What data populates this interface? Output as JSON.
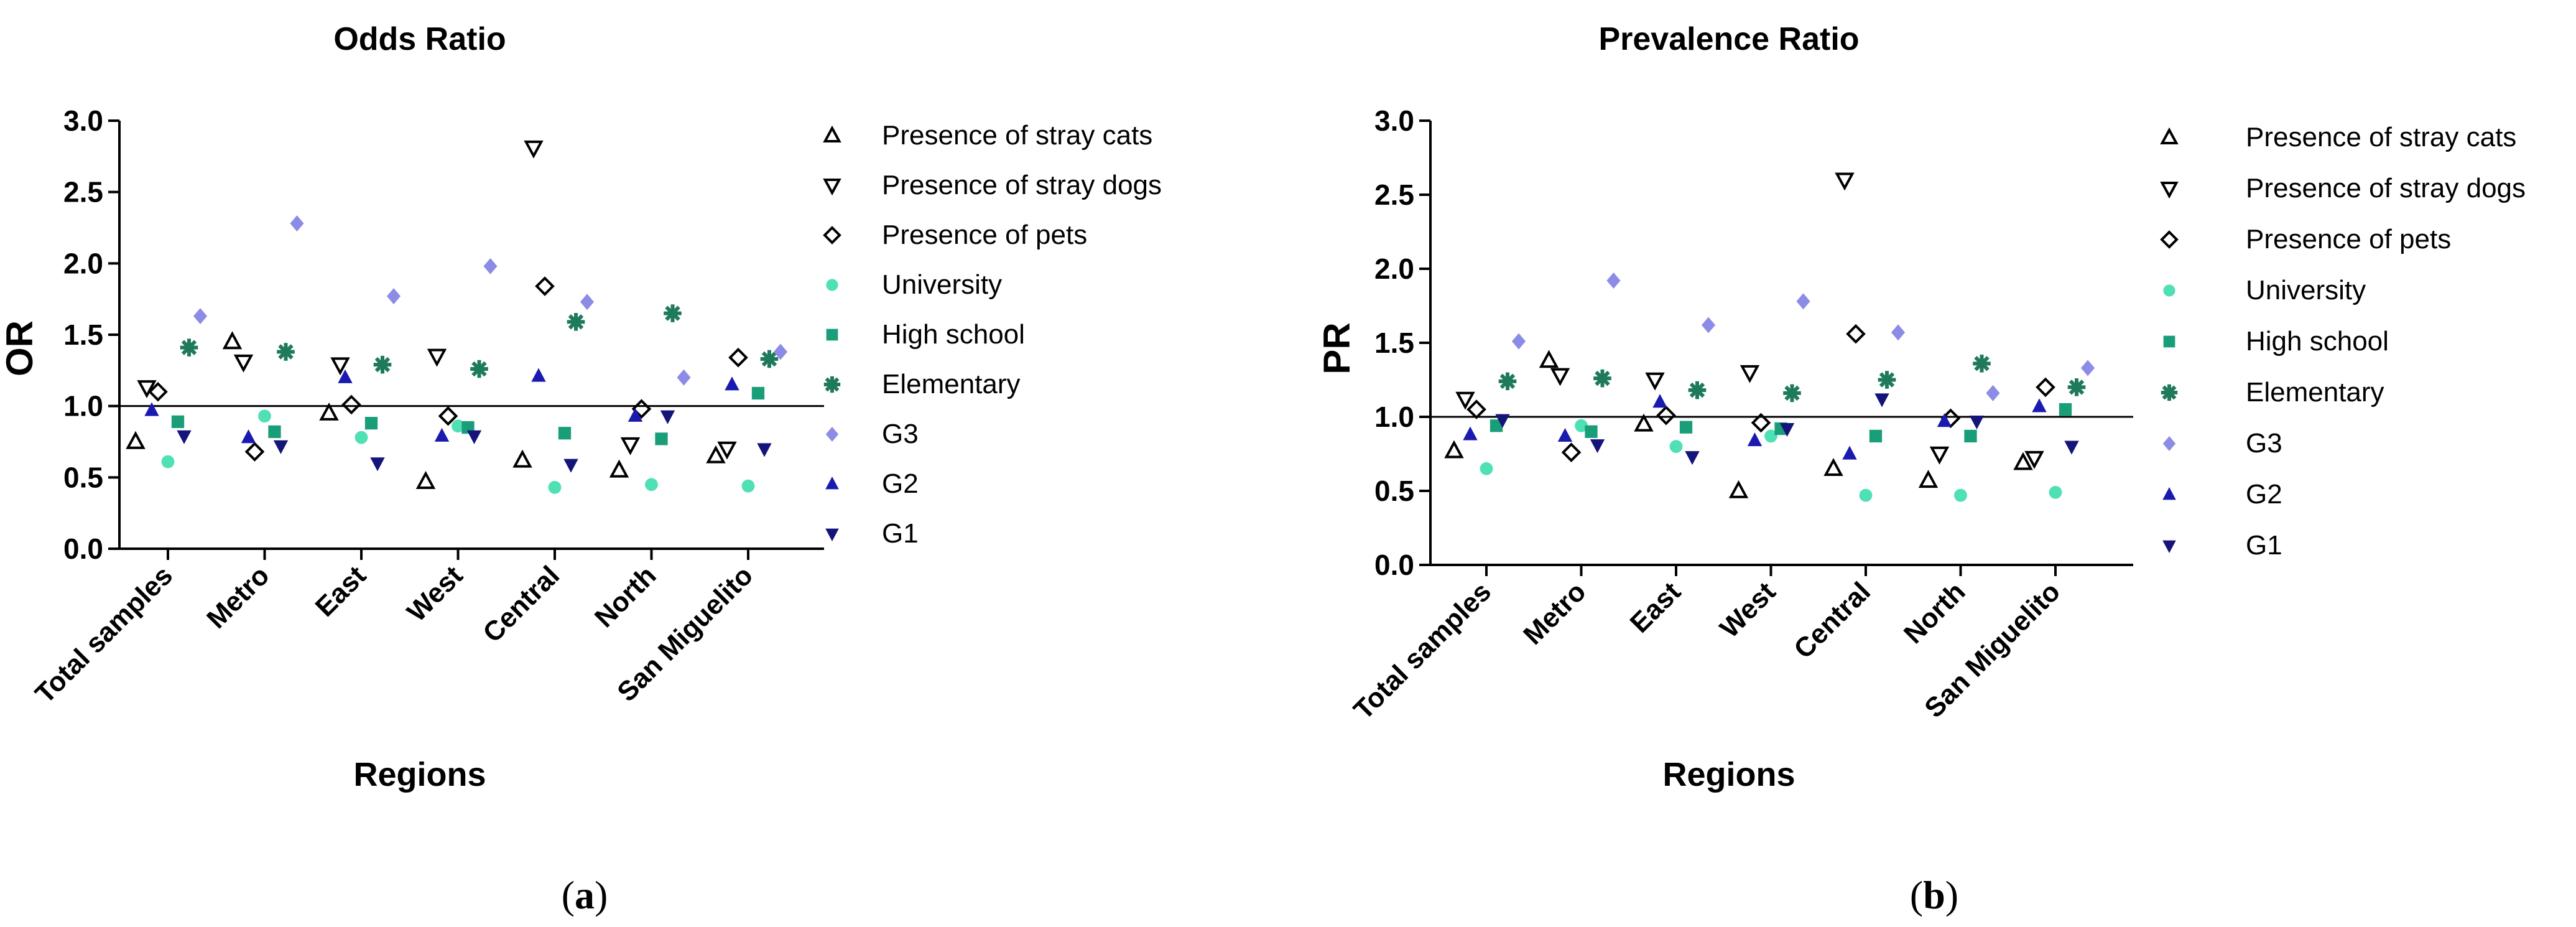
{
  "chart_data": [
    {
      "type": "scatter",
      "panel": "(a)",
      "panel_letter": "a",
      "title": "Odds Ratio",
      "xlabel": "Regions",
      "ylabel": "OR",
      "ylim": [
        0,
        3
      ],
      "yticks": [
        "0.0",
        "0.5",
        "1.0",
        "1.5",
        "2.0",
        "2.5",
        "3.0"
      ],
      "reference_line": 1.0,
      "categories": [
        "Total samples",
        "Metro",
        "East",
        "West",
        "Central",
        "North",
        "San Miguelito"
      ],
      "series": [
        {
          "name": "Presence of stray cats",
          "marker": "triangle-up-open",
          "color": "#000000",
          "values": [
            0.75,
            1.45,
            0.95,
            0.47,
            0.62,
            0.55,
            0.65
          ]
        },
        {
          "name": "Presence of stray dogs",
          "marker": "triangle-down-open",
          "color": "#000000",
          "values": [
            1.13,
            1.31,
            1.29,
            1.35,
            2.81,
            0.73,
            0.7
          ]
        },
        {
          "name": "Presence of pets",
          "marker": "diamond-open",
          "color": "#000000",
          "values": [
            1.1,
            0.68,
            1.01,
            0.93,
            1.84,
            0.98,
            1.34
          ]
        },
        {
          "name": "University",
          "marker": "circle",
          "color": "#4fe0b5",
          "values": [
            0.61,
            0.93,
            0.78,
            0.86,
            0.43,
            0.45,
            0.44
          ]
        },
        {
          "name": "High school",
          "marker": "square",
          "color": "#1a9e7a",
          "values": [
            0.89,
            0.82,
            0.88,
            0.85,
            0.81,
            0.77,
            1.09
          ]
        },
        {
          "name": "Elementary",
          "marker": "asterisk",
          "color": "#1f7a5c",
          "values": [
            1.41,
            1.38,
            1.29,
            1.26,
            1.59,
            1.65,
            1.33
          ]
        },
        {
          "name": "G3",
          "marker": "diamond",
          "color": "#8c8ce6",
          "values": [
            1.63,
            2.28,
            1.77,
            1.98,
            1.73,
            1.2,
            1.38
          ]
        },
        {
          "name": "G2",
          "marker": "triangle-up",
          "color": "#1a1ab0",
          "values": [
            0.97,
            0.78,
            1.2,
            0.79,
            1.21,
            0.93,
            1.15
          ]
        },
        {
          "name": "G1",
          "marker": "triangle-down",
          "color": "#14147a",
          "values": [
            0.79,
            0.72,
            0.6,
            0.79,
            0.59,
            0.93,
            0.7
          ]
        }
      ]
    },
    {
      "type": "scatter",
      "panel": "(b)",
      "panel_letter": "b",
      "title": "Prevalence Ratio",
      "xlabel": "Regions",
      "ylabel": "PR",
      "ylim": [
        0,
        3
      ],
      "yticks": [
        "0.0",
        "0.5",
        "1.0",
        "1.5",
        "2.0",
        "2.5",
        "3.0"
      ],
      "reference_line": 1.0,
      "categories": [
        "Total samples",
        "Metro",
        "East",
        "West",
        "Central",
        "North",
        "San Miguelito"
      ],
      "series": [
        {
          "name": "Presence of stray cats",
          "marker": "triangle-up-open",
          "color": "#000000",
          "values": [
            0.77,
            1.38,
            0.95,
            0.5,
            0.65,
            0.57,
            0.69
          ]
        },
        {
          "name": "Presence of stray dogs",
          "marker": "triangle-down-open",
          "color": "#000000",
          "values": [
            1.12,
            1.28,
            1.25,
            1.3,
            2.6,
            0.75,
            0.72
          ]
        },
        {
          "name": "Presence of pets",
          "marker": "diamond-open",
          "color": "#000000",
          "values": [
            1.05,
            0.76,
            1.01,
            0.96,
            1.56,
            0.99,
            1.2
          ]
        },
        {
          "name": "University",
          "marker": "circle",
          "color": "#4fe0b5",
          "values": [
            0.65,
            0.94,
            0.8,
            0.87,
            0.47,
            0.47,
            0.49
          ]
        },
        {
          "name": "High school",
          "marker": "square",
          "color": "#1a9e7a",
          "values": [
            0.94,
            0.9,
            0.93,
            0.92,
            0.87,
            0.87,
            1.05
          ]
        },
        {
          "name": "Elementary",
          "marker": "asterisk",
          "color": "#1f7a5c",
          "values": [
            1.24,
            1.26,
            1.18,
            1.16,
            1.25,
            1.36,
            1.2
          ]
        },
        {
          "name": "G3",
          "marker": "diamond",
          "color": "#8c8ce6",
          "values": [
            1.51,
            1.92,
            1.62,
            1.78,
            1.57,
            1.16,
            1.33
          ]
        },
        {
          "name": "G2",
          "marker": "triangle-up",
          "color": "#1a1ab0",
          "values": [
            0.88,
            0.87,
            1.1,
            0.84,
            0.75,
            0.97,
            1.07
          ]
        },
        {
          "name": "G1",
          "marker": "triangle-down",
          "color": "#14147a",
          "values": [
            0.98,
            0.81,
            0.73,
            0.92,
            1.12,
            0.97,
            0.8
          ]
        }
      ]
    }
  ]
}
